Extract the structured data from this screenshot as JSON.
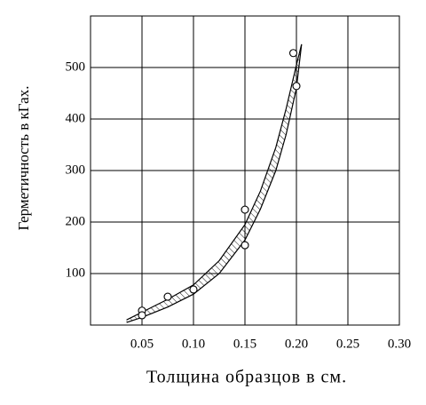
{
  "chart_data": {
    "type": "scatter",
    "x_label": "Толщина образцов в см.",
    "y_label": "Герметичность в кГах.",
    "xlim": [
      0,
      0.3
    ],
    "ylim": [
      0,
      600
    ],
    "xticks": [
      0.05,
      {
        "value": 0.1,
        "label": "0.10"
      },
      0.15,
      {
        "value": 0.2,
        "label": "0.20"
      },
      0.25,
      {
        "value": 0.3,
        "label": "0.30"
      }
    ],
    "yticks": [
      100,
      200,
      300,
      400,
      500
    ],
    "grid": true,
    "color": "#000000",
    "points": {
      "x": [
        0.05,
        0.05,
        0.075,
        0.1,
        0.15,
        0.15,
        0.197,
        0.2
      ],
      "y": [
        28,
        19,
        55,
        69,
        224,
        155,
        528,
        464
      ]
    },
    "band": {
      "x": [
        0.035,
        0.05,
        0.075,
        0.1,
        0.125,
        0.15,
        0.165,
        0.18,
        0.19,
        0.2,
        0.205
      ],
      "upper": [
        10,
        25,
        50,
        78,
        125,
        195,
        260,
        345,
        420,
        505,
        545
      ],
      "lower": [
        5,
        15,
        35,
        60,
        100,
        165,
        225,
        300,
        370,
        460,
        545
      ]
    }
  }
}
